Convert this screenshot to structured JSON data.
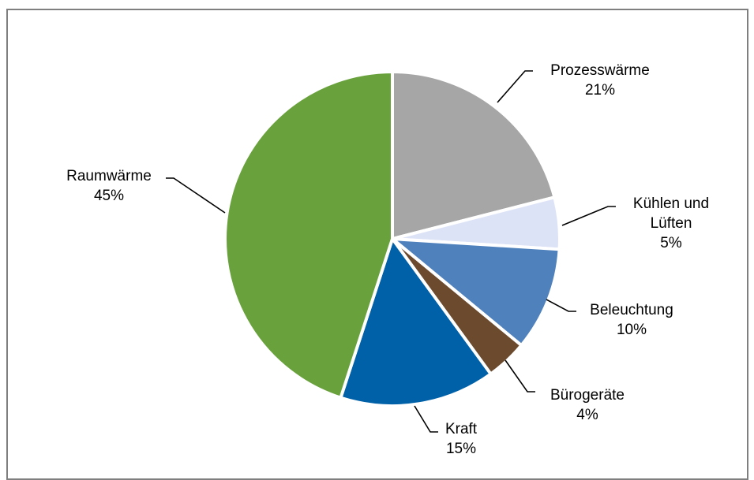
{
  "chart_data": {
    "type": "pie",
    "title": "",
    "slices": [
      {
        "name": "Prozesswärme",
        "label_lines": [
          "Prozesswärme"
        ],
        "value": 21,
        "value_label": "21%",
        "color": "#a6a6a6"
      },
      {
        "name": "Kühlen und Lüften",
        "label_lines": [
          "Kühlen und",
          "Lüften"
        ],
        "value": 5,
        "value_label": "5%",
        "color": "#dde3f7"
      },
      {
        "name": "Beleuchtung",
        "label_lines": [
          "Beleuchtung"
        ],
        "value": 10,
        "value_label": "10%",
        "color": "#4f81bd"
      },
      {
        "name": "Bürogeräte",
        "label_lines": [
          "Bürogeräte"
        ],
        "value": 4,
        "value_label": "4%",
        "color": "#6b4a2d"
      },
      {
        "name": "Kraft",
        "label_lines": [
          "Kraft"
        ],
        "value": 15,
        "value_label": "15%",
        "color": "#0060a8"
      },
      {
        "name": "Raumwärme",
        "label_lines": [
          "Raumwärme"
        ],
        "value": 45,
        "value_label": "45%",
        "color": "#69a23c"
      }
    ],
    "start_angle_deg": 0,
    "direction": "clockwise",
    "legend": "none",
    "data_labels": "outside-with-leader-lines"
  }
}
